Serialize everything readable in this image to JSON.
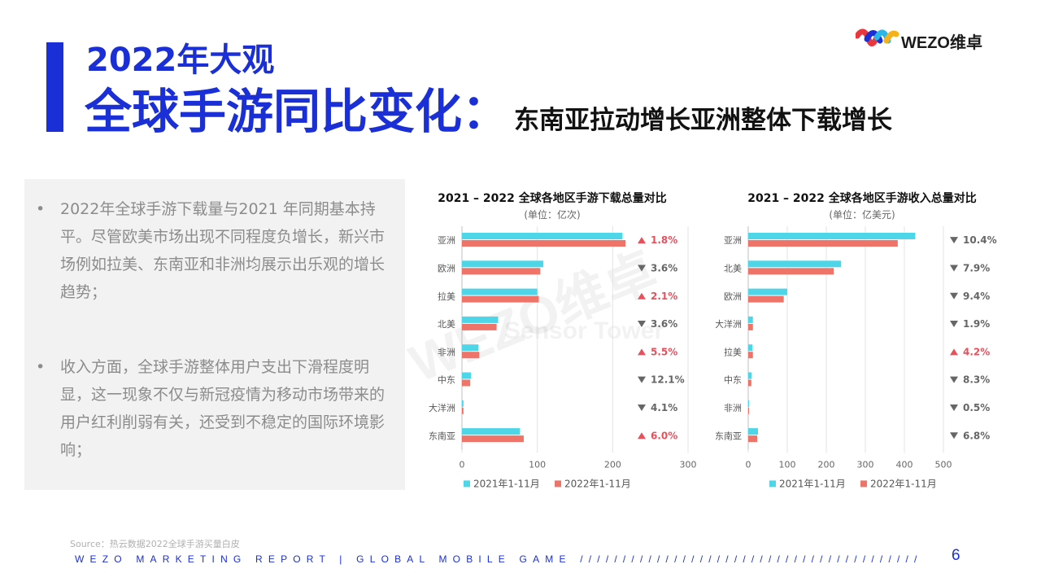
{
  "header": {
    "title_year": "2022年大观",
    "title_main": "全球手游同比变化：",
    "title_sub": "东南亚拉动增长亚洲整体下载增长"
  },
  "logo": {
    "text": "WEZO维卓",
    "colors": [
      "#e8383d",
      "#1a2fd6",
      "#2ab7e8",
      "#f6b21a"
    ]
  },
  "text_panel": {
    "bullet_symbol": "•",
    "bullets": [
      "2022年全球手游下载量与2021 年同期基本持平。尽管欧美市场出现不同程度负增长，新兴市场例如拉美、东南亚和非洲均展示出乐观的增长趋势；",
      "收入方面，全球手游整体用户支出下滑程度明显，这一现象不仅与新冠疫情为移动市场带来的用户红利削弱有关，还受到不稳定的国际环境影响；"
    ]
  },
  "watermark": {
    "text1": "WEZO维卓",
    "text2": "Sensor Tower"
  },
  "chart_data": [
    {
      "type": "bar",
      "orientation": "horizontal",
      "title": "2021 – 2022 全球各地区手游下载总量对比",
      "subtitle": "(单位：亿次)",
      "categories": [
        "亚洲",
        "欧洲",
        "拉美",
        "北美",
        "非洲",
        "中东",
        "大洋洲",
        "东南亚"
      ],
      "series": [
        {
          "name": "2021年1-11月",
          "color": "#4dd6e8",
          "values": [
            213,
            108,
            100,
            48,
            22,
            12,
            2,
            77
          ]
        },
        {
          "name": "2022年1-11月",
          "color": "#ee7369",
          "values": [
            217,
            104,
            102,
            46,
            23,
            11,
            2,
            82
          ]
        }
      ],
      "changes": [
        {
          "dir": "up",
          "value": "1.8%"
        },
        {
          "dir": "down",
          "value": "3.6%"
        },
        {
          "dir": "up",
          "value": "2.1%"
        },
        {
          "dir": "down",
          "value": "3.6%"
        },
        {
          "dir": "up",
          "value": "5.5%"
        },
        {
          "dir": "down",
          "value": "12.1%"
        },
        {
          "dir": "down",
          "value": "4.1%"
        },
        {
          "dir": "up",
          "value": "6.0%"
        }
      ],
      "xticks": [
        "0",
        "100",
        "200",
        "300"
      ],
      "xlim": [
        0,
        300
      ],
      "grid": true,
      "legend": "bottom",
      "up_color": "#e8505b",
      "down_color": "#666666"
    },
    {
      "type": "bar",
      "orientation": "horizontal",
      "title": "2021 – 2022 全球各地区手游收入总量对比",
      "subtitle": "(单位：亿美元)",
      "categories": [
        "亚洲",
        "北美",
        "欧洲",
        "大洋洲",
        "拉美",
        "中东",
        "非洲",
        "东南亚"
      ],
      "series": [
        {
          "name": "2021年1-11月",
          "color": "#4dd6e8",
          "values": [
            428,
            238,
            100,
            12,
            11,
            9,
            1,
            25
          ]
        },
        {
          "name": "2022年1-11月",
          "color": "#ee7369",
          "values": [
            383,
            219,
            91,
            12,
            12,
            8,
            1,
            23
          ]
        }
      ],
      "changes": [
        {
          "dir": "down",
          "value": "10.4%"
        },
        {
          "dir": "down",
          "value": "7.9%"
        },
        {
          "dir": "down",
          "value": "9.4%"
        },
        {
          "dir": "down",
          "value": "1.9%"
        },
        {
          "dir": "up",
          "value": "4.2%"
        },
        {
          "dir": "down",
          "value": "8.3%"
        },
        {
          "dir": "down",
          "value": "0.5%"
        },
        {
          "dir": "down",
          "value": "6.8%"
        }
      ],
      "xticks": [
        "0",
        "100",
        "200",
        "300",
        "400",
        "500"
      ],
      "xlim": [
        0,
        500
      ],
      "grid": true,
      "legend": "bottom",
      "up_color": "#e8505b",
      "down_color": "#666666"
    }
  ],
  "footer": {
    "source": "Source：热云数据2022全球手游买量白皮",
    "report": "WEZO MARKETING REPORT | GLOBAL MOBILE GAME ////////////////////////////////////////",
    "page_number": "6"
  }
}
